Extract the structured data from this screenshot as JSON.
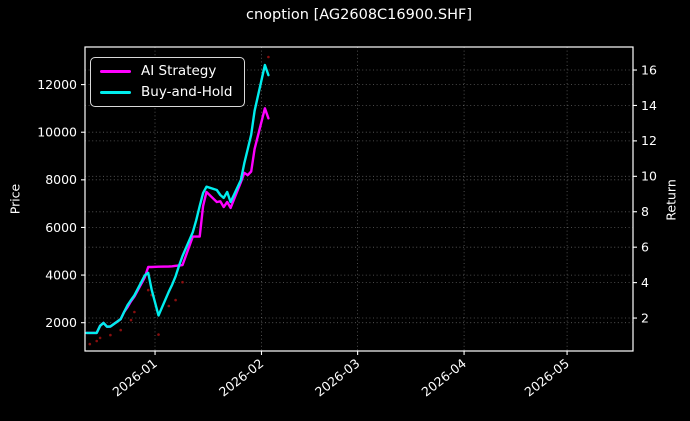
{
  "title": "cnoption [AG2608C16900.SHF]",
  "axes": {
    "left_label": "Price",
    "right_label": "Return"
  },
  "legend": {
    "position": "upper-left",
    "items": [
      {
        "label": "AI Strategy",
        "color": "#ff00ff"
      },
      {
        "label": "Buy-and-Hold",
        "color": "#00eded"
      }
    ]
  },
  "colors": {
    "background": "#000000",
    "text": "#ffffff",
    "grid": "#ffffff",
    "spine": "#ffffff",
    "ai_strategy": "#ff00ff",
    "buy_and_hold": "#00eded",
    "signal_dots": "#a01010",
    "legend_border": "#d9d9d9"
  },
  "chart_data": {
    "type": "line",
    "title": "cnoption [AG2608C16900.SHF]",
    "xlabel": "",
    "ylabel_left": "Price",
    "ylabel_right": "Return",
    "grid": "dotted, horizontal gridlines for both y-axes plus vertical month gridlines",
    "legend_position": "upper-left",
    "x_axis": {
      "unit": "trading-day index (0 = 2025-12-11)",
      "lim": [
        0.6,
        160.2
      ],
      "ticks": [
        {
          "pos": 21,
          "label": "2026-01"
        },
        {
          "pos": 52,
          "label": "2026-02"
        },
        {
          "pos": 80,
          "label": "2026-03"
        },
        {
          "pos": 111,
          "label": "2026-04"
        },
        {
          "pos": 141,
          "label": "2026-05"
        }
      ]
    },
    "y_left": {
      "label": "Price",
      "lim": [
        811,
        13579
      ],
      "ticks": [
        2000,
        4000,
        6000,
        8000,
        10000,
        12000
      ]
    },
    "y_right": {
      "label": "Return",
      "lim": [
        0.14,
        17.3
      ],
      "ticks": [
        2,
        4,
        6,
        8,
        10,
        12,
        14,
        16
      ]
    },
    "series": [
      {
        "name": "AI Strategy",
        "axis": "left",
        "color": "#ff00ff",
        "x": [
          1,
          4,
          5,
          6,
          7,
          8,
          11,
          12,
          13,
          14,
          15,
          18,
          19,
          20,
          22,
          25,
          26,
          27,
          28,
          29,
          32,
          33,
          34,
          35,
          36,
          39,
          40,
          41,
          42,
          43,
          46,
          47,
          48,
          49,
          50,
          53,
          54
        ],
        "y": [
          1570,
          1570,
          1870,
          1990,
          1830,
          1840,
          2150,
          2450,
          2660,
          2900,
          3100,
          3900,
          4340,
          4340,
          4350,
          4360,
          4370,
          4390,
          4400,
          4420,
          5615,
          5615,
          5615,
          6900,
          7490,
          7070,
          7100,
          6860,
          7070,
          6820,
          7900,
          8290,
          8200,
          8350,
          9300,
          11005,
          10585
        ]
      },
      {
        "name": "Buy-and-Hold",
        "axis": "left",
        "color": "#00eded",
        "x": [
          1,
          4,
          5,
          6,
          7,
          8,
          11,
          12,
          13,
          14,
          15,
          18,
          19,
          20,
          22,
          25,
          26,
          27,
          28,
          29,
          32,
          33,
          34,
          35,
          36,
          39,
          40,
          41,
          42,
          43,
          46,
          47,
          48,
          49,
          50,
          53,
          54
        ],
        "y": [
          1570,
          1570,
          1870,
          1990,
          1830,
          1840,
          2150,
          2450,
          2740,
          2950,
          3150,
          3980,
          4090,
          3400,
          2300,
          3300,
          3600,
          3950,
          4400,
          4800,
          5800,
          6300,
          6900,
          7450,
          7710,
          7575,
          7365,
          7240,
          7490,
          7070,
          7995,
          8700,
          9300,
          9900,
          10900,
          12825,
          12400
        ]
      }
    ],
    "scatter": {
      "name": "signal-dots",
      "axis": "left",
      "color": "#a01010",
      "x": [
        2,
        4,
        5,
        8,
        11,
        14,
        15,
        19,
        20,
        22,
        25,
        27,
        29,
        54
      ],
      "y": [
        1100,
        1230,
        1360,
        1480,
        1690,
        2110,
        2450,
        3370,
        3160,
        1500,
        2700,
        2950,
        3700,
        13160
      ]
    }
  }
}
